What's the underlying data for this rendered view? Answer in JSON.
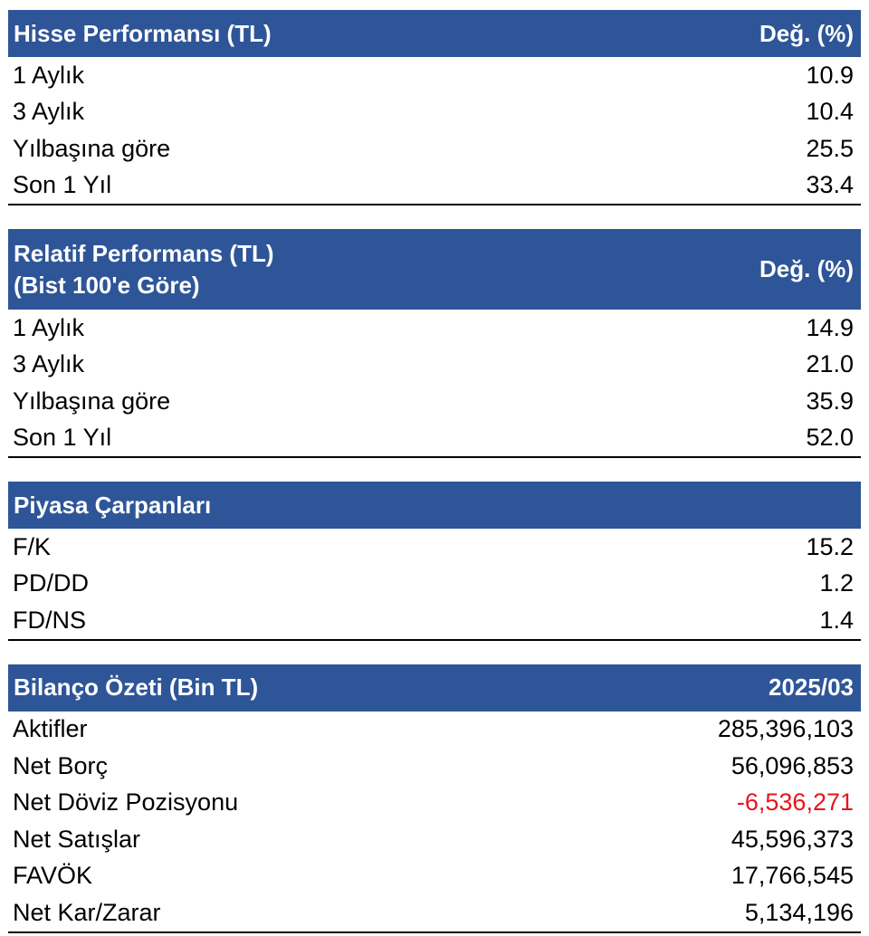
{
  "colors": {
    "header_bg": "#2e5597",
    "header_text": "#ffffff",
    "negative_value": "#e8141b"
  },
  "sections": [
    {
      "title_lines": [
        "Hisse Performansı (TL)"
      ],
      "value_header": "Değ. (%)",
      "rows": [
        {
          "label": "1 Aylık",
          "value": "10.9"
        },
        {
          "label": "3 Aylık",
          "value": "10.4"
        },
        {
          "label": "Yılbaşına göre",
          "value": "25.5"
        },
        {
          "label": "Son 1 Yıl",
          "value": "33.4"
        }
      ]
    },
    {
      "title_lines": [
        "Relatif Performans (TL)",
        "(Bist 100'e Göre)"
      ],
      "value_header": "Değ. (%)",
      "rows": [
        {
          "label": "1 Aylık",
          "value": "14.9"
        },
        {
          "label": "3 Aylık",
          "value": "21.0"
        },
        {
          "label": "Yılbaşına göre",
          "value": "35.9"
        },
        {
          "label": "Son 1 Yıl",
          "value": "52.0"
        }
      ]
    },
    {
      "title_lines": [
        "Piyasa Çarpanları"
      ],
      "value_header": "",
      "rows": [
        {
          "label": "F/K",
          "value": "15.2"
        },
        {
          "label": "PD/DD",
          "value": "1.2"
        },
        {
          "label": "FD/NS",
          "value": "1.4"
        }
      ]
    },
    {
      "title_lines": [
        "Bilanço Özeti (Bin TL)"
      ],
      "value_header": "2025/03",
      "rows": [
        {
          "label": "Aktifler",
          "value": "285,396,103"
        },
        {
          "label": "Net Borç",
          "value": "56,096,853"
        },
        {
          "label": "Net Döviz Pozisyonu",
          "value": "-6,536,271",
          "negative": true
        },
        {
          "label": "Net Satışlar",
          "value": "45,596,373"
        },
        {
          "label": "FAVÖK",
          "value": "17,766,545"
        },
        {
          "label": "Net Kar/Zarar",
          "value": "5,134,196"
        }
      ]
    }
  ]
}
